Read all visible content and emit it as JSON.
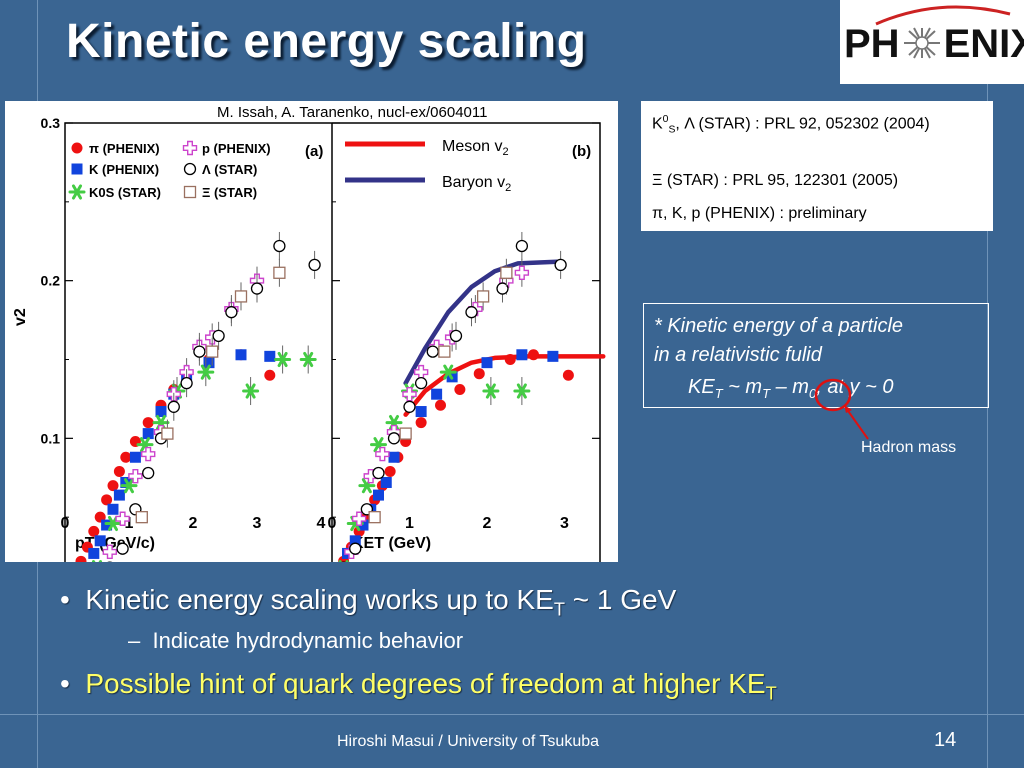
{
  "slide": {
    "title": "Kinetic energy scaling",
    "logo_text_left": "PH",
    "logo_text_right": "ENIX",
    "citation": "M. Issah, A. Taranenko, nucl-ex/0604011",
    "references": [
      {
        "prefix": "K",
        "sup": "0",
        "sub": "S",
        "text": ", Λ (STAR) : PRL 92, 052302 (2004)"
      },
      {
        "text": "Ξ (STAR) : PRL 95, 122301 (2005)"
      },
      {
        "text": "π, K, p (PHENIX) : preliminary"
      }
    ],
    "note": {
      "line1": "* Kinetic energy of a particle",
      "line2": "in a relativistic fulid",
      "formula_ke": "KE",
      "formula_ke_sub": "T",
      "formula_mid": " ~ m",
      "formula_mid_sub": "T",
      "formula_minus": " – ",
      "formula_m0": "m",
      "formula_m0_sub": "0",
      "formula_end": ", at y ~ 0"
    },
    "annotation": "Hadron mass",
    "bullets": [
      {
        "marker": "•",
        "text": "Kinetic energy scaling works up to KE",
        "sub": "T",
        "tail": " ~ 1 GeV"
      },
      {
        "marker": "–",
        "text": "Indicate hydrodynamic behavior"
      },
      {
        "marker": "•",
        "text": "Possible hint of quark degrees of freedom at higher KE",
        "sub": "T"
      }
    ],
    "footer": "Hiroshi Masui / University of Tsukuba",
    "page_number": "14",
    "colors": {
      "background": "#3a6592",
      "highlight": "#ffff66",
      "meson": "#ee1111",
      "baryon": "#333388"
    }
  },
  "chart_data": [
    {
      "type": "scatter",
      "panel_label": "(a)",
      "xlabel": "p_T (GeV/c)",
      "ylabel": "v_2",
      "xlim": [
        0,
        4
      ],
      "ylim": [
        0,
        0.3
      ],
      "x_ticks": [
        "0",
        "1",
        "2",
        "3",
        "4"
      ],
      "y_ticks": [
        "0",
        "0.1",
        "0.2",
        "0.3"
      ],
      "legend": [
        "π (PHENIX)",
        "K (PHENIX)",
        "K0S (STAR)",
        "p (PHENIX)",
        "Λ (STAR)",
        "Ξ (STAR)"
      ],
      "series": [
        {
          "name": "π (PHENIX)",
          "marker": "circle-filled",
          "color": "#ee1111",
          "points": [
            [
              0.25,
              0.022
            ],
            [
              0.35,
              0.031
            ],
            [
              0.45,
              0.041
            ],
            [
              0.55,
              0.05
            ],
            [
              0.65,
              0.061
            ],
            [
              0.75,
              0.07
            ],
            [
              0.85,
              0.079
            ],
            [
              0.95,
              0.088
            ],
            [
              1.1,
              0.098
            ],
            [
              1.3,
              0.11
            ],
            [
              1.5,
              0.121
            ],
            [
              1.7,
              0.131
            ],
            [
              1.9,
              0.141
            ],
            [
              2.25,
              0.15
            ],
            [
              2.75,
              0.153
            ],
            [
              3.2,
              0.14
            ]
          ]
        },
        {
          "name": "K (PHENIX)",
          "marker": "square-filled",
          "color": "#1144dd",
          "points": [
            [
              0.45,
              0.027
            ],
            [
              0.55,
              0.035
            ],
            [
              0.65,
              0.045
            ],
            [
              0.75,
              0.055
            ],
            [
              0.85,
              0.064
            ],
            [
              0.95,
              0.072
            ],
            [
              1.1,
              0.088
            ],
            [
              1.3,
              0.103
            ],
            [
              1.5,
              0.117
            ],
            [
              1.7,
              0.128
            ],
            [
              1.9,
              0.139
            ],
            [
              2.25,
              0.148
            ],
            [
              2.75,
              0.153
            ],
            [
              3.2,
              0.152
            ]
          ]
        },
        {
          "name": "K0S (STAR)",
          "marker": "star",
          "color": "#44cc44",
          "points": [
            [
              0.35,
              0.008
            ],
            [
              0.5,
              0.018
            ],
            [
              0.75,
              0.046
            ],
            [
              1.0,
              0.07
            ],
            [
              1.25,
              0.096
            ],
            [
              1.5,
              0.11
            ],
            [
              1.75,
              0.13
            ],
            [
              2.2,
              0.142
            ],
            [
              2.9,
              0.13
            ],
            [
              3.4,
              0.15
            ],
            [
              3.8,
              0.15
            ]
          ]
        },
        {
          "name": "p (PHENIX)",
          "marker": "cross-open",
          "color": "#cc44cc",
          "points": [
            [
              0.7,
              0.028
            ],
            [
              0.9,
              0.049
            ],
            [
              1.1,
              0.076
            ],
            [
              1.3,
              0.09
            ],
            [
              1.5,
              0.104
            ],
            [
              1.7,
              0.128
            ],
            [
              1.9,
              0.142
            ],
            [
              2.1,
              0.158
            ],
            [
              2.3,
              0.164
            ],
            [
              2.6,
              0.182
            ],
            [
              3.0,
              0.2
            ]
          ]
        },
        {
          "name": "Λ (STAR)",
          "marker": "circle-open",
          "color": "#000000",
          "points": [
            [
              0.7,
              0.018
            ],
            [
              0.9,
              0.03
            ],
            [
              1.1,
              0.055
            ],
            [
              1.3,
              0.078
            ],
            [
              1.5,
              0.1
            ],
            [
              1.7,
              0.12
            ],
            [
              1.9,
              0.135
            ],
            [
              2.1,
              0.155
            ],
            [
              2.4,
              0.165
            ],
            [
              2.6,
              0.18
            ],
            [
              3.0,
              0.195
            ],
            [
              3.35,
              0.222
            ],
            [
              3.9,
              0.21
            ]
          ]
        },
        {
          "name": "Ξ (STAR)",
          "marker": "square-open",
          "color": "#9a7060",
          "points": [
            [
              1.2,
              0.05
            ],
            [
              1.6,
              0.103
            ],
            [
              2.3,
              0.155
            ],
            [
              2.75,
              0.19
            ],
            [
              3.35,
              0.205
            ]
          ]
        }
      ]
    },
    {
      "type": "scatter",
      "panel_label": "(b)",
      "xlabel": "KE_T (GeV)",
      "ylabel": "v_2",
      "xlim": [
        0,
        3.5
      ],
      "ylim": [
        0,
        0.3
      ],
      "x_ticks": [
        "0",
        "1",
        "2",
        "3"
      ],
      "legend": [
        "Meson v2",
        "Baryon v2"
      ],
      "curves": [
        {
          "name": "Meson v2",
          "color": "#ee1111",
          "points": [
            [
              0.95,
              0.115
            ],
            [
              1.2,
              0.13
            ],
            [
              1.5,
              0.141
            ],
            [
              1.8,
              0.148
            ],
            [
              2.1,
              0.151
            ],
            [
              2.5,
              0.152
            ],
            [
              3.5,
              0.152
            ]
          ]
        },
        {
          "name": "Baryon v2",
          "color": "#333388",
          "points": [
            [
              0.95,
              0.135
            ],
            [
              1.2,
              0.157
            ],
            [
              1.5,
              0.18
            ],
            [
              1.8,
              0.196
            ],
            [
              2.1,
              0.206
            ],
            [
              2.4,
              0.211
            ],
            [
              2.9,
              0.212
            ]
          ]
        }
      ],
      "series": [
        {
          "name": "π (PHENIX)",
          "marker": "circle-filled",
          "color": "#ee1111",
          "points": [
            [
              0.15,
              0.022
            ],
            [
              0.25,
              0.031
            ],
            [
              0.35,
              0.041
            ],
            [
              0.45,
              0.05
            ],
            [
              0.55,
              0.061
            ],
            [
              0.65,
              0.07
            ],
            [
              0.75,
              0.079
            ],
            [
              0.85,
              0.088
            ],
            [
              0.95,
              0.098
            ],
            [
              1.15,
              0.11
            ],
            [
              1.4,
              0.121
            ],
            [
              1.65,
              0.131
            ],
            [
              1.9,
              0.141
            ],
            [
              2.3,
              0.15
            ],
            [
              2.6,
              0.153
            ],
            [
              3.05,
              0.14
            ]
          ]
        },
        {
          "name": "K (PHENIX)",
          "marker": "square-filled",
          "color": "#1144dd",
          "points": [
            [
              0.2,
              0.027
            ],
            [
              0.3,
              0.035
            ],
            [
              0.4,
              0.045
            ],
            [
              0.5,
              0.055
            ],
            [
              0.6,
              0.064
            ],
            [
              0.7,
              0.072
            ],
            [
              0.8,
              0.088
            ],
            [
              0.95,
              0.103
            ],
            [
              1.15,
              0.117
            ],
            [
              1.35,
              0.128
            ],
            [
              1.55,
              0.139
            ],
            [
              2.0,
              0.148
            ],
            [
              2.45,
              0.153
            ],
            [
              2.85,
              0.152
            ]
          ]
        },
        {
          "name": "K0S (STAR)",
          "marker": "star",
          "color": "#44cc44",
          "points": [
            [
              0.15,
              0.018
            ],
            [
              0.3,
              0.046
            ],
            [
              0.45,
              0.07
            ],
            [
              0.6,
              0.096
            ],
            [
              0.8,
              0.11
            ],
            [
              1.0,
              0.13
            ],
            [
              1.5,
              0.142
            ],
            [
              2.05,
              0.13
            ],
            [
              2.45,
              0.13
            ]
          ]
        },
        {
          "name": "p (PHENIX)",
          "marker": "cross-open",
          "color": "#cc44cc",
          "points": [
            [
              0.25,
              0.028
            ],
            [
              0.35,
              0.049
            ],
            [
              0.5,
              0.076
            ],
            [
              0.65,
              0.09
            ],
            [
              0.8,
              0.104
            ],
            [
              1.0,
              0.128
            ],
            [
              1.15,
              0.142
            ],
            [
              1.35,
              0.158
            ],
            [
              1.55,
              0.164
            ],
            [
              1.85,
              0.182
            ],
            [
              2.25,
              0.2
            ],
            [
              2.45,
              0.205
            ]
          ]
        },
        {
          "name": "Λ (STAR)",
          "marker": "circle-open",
          "color": "#000000",
          "points": [
            [
              0.15,
              0.018
            ],
            [
              0.3,
              0.03
            ],
            [
              0.45,
              0.055
            ],
            [
              0.6,
              0.078
            ],
            [
              0.8,
              0.1
            ],
            [
              1.0,
              0.12
            ],
            [
              1.15,
              0.135
            ],
            [
              1.3,
              0.155
            ],
            [
              1.6,
              0.165
            ],
            [
              1.8,
              0.18
            ],
            [
              2.2,
              0.195
            ],
            [
              2.45,
              0.222
            ],
            [
              2.95,
              0.21
            ]
          ]
        },
        {
          "name": "Ξ (STAR)",
          "marker": "square-open",
          "color": "#9a7060",
          "points": [
            [
              0.55,
              0.05
            ],
            [
              0.95,
              0.103
            ],
            [
              1.45,
              0.155
            ],
            [
              1.95,
              0.19
            ],
            [
              2.25,
              0.205
            ]
          ]
        }
      ]
    }
  ]
}
